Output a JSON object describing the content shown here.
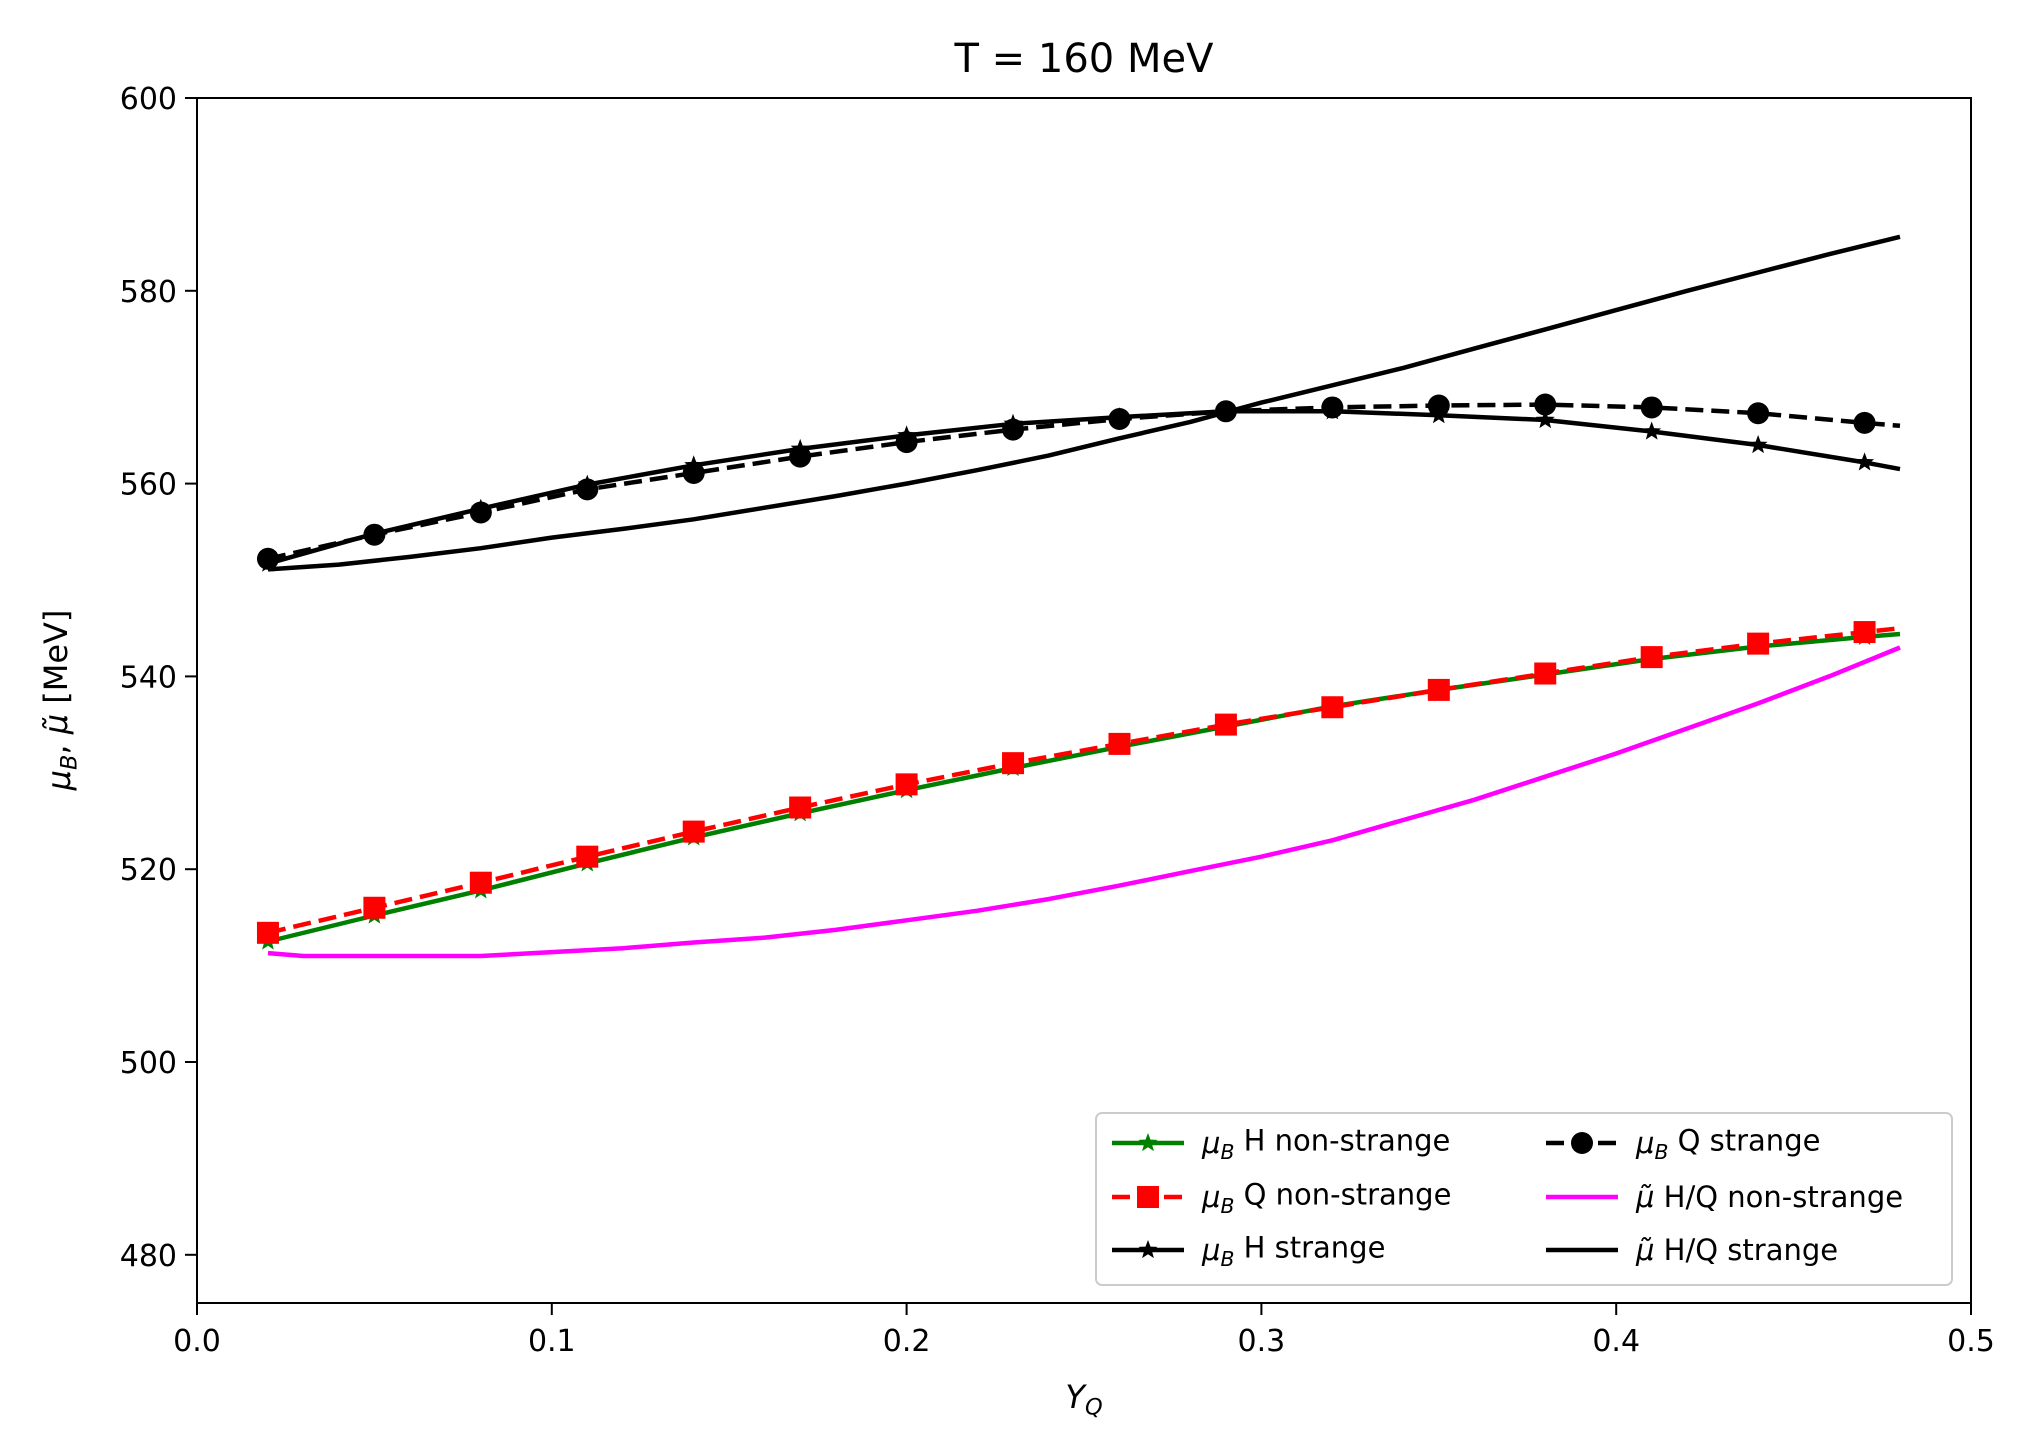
{
  "chart_data": {
    "type": "line",
    "title": "T = 160 MeV",
    "xlabel": "Y_Q",
    "ylabel": "μ_B, μ̃ [MeV]",
    "xlim": [
      0.0,
      0.5
    ],
    "ylim": [
      475,
      600
    ],
    "xticks": [
      "0.0",
      "0.1",
      "0.2",
      "0.3",
      "0.4",
      "0.5"
    ],
    "yticks": [
      "480",
      "500",
      "520",
      "540",
      "560",
      "580",
      "600"
    ],
    "grid": false,
    "legend_position": "lower-right",
    "series": [
      {
        "name": "μ_B H non-strange",
        "color": "#008000",
        "style": "solid",
        "marker": "star",
        "x": [
          0.02,
          0.05,
          0.08,
          0.11,
          0.14,
          0.17,
          0.2,
          0.23,
          0.26,
          0.29,
          0.32,
          0.35,
          0.38,
          0.41,
          0.44,
          0.47,
          0.48
        ],
        "y": [
          512.5,
          515.2,
          517.8,
          520.6,
          523.3,
          525.8,
          528.2,
          530.5,
          532.7,
          534.8,
          536.9,
          538.6,
          540.2,
          541.8,
          543.1,
          544.1,
          544.4
        ]
      },
      {
        "name": "μ_B Q non-strange",
        "color": "#ff0000",
        "style": "dashed",
        "marker": "square",
        "x": [
          0.02,
          0.05,
          0.08,
          0.11,
          0.14,
          0.17,
          0.2,
          0.23,
          0.26,
          0.29,
          0.32,
          0.35,
          0.38,
          0.41,
          0.44,
          0.47,
          0.48
        ],
        "y": [
          513.4,
          516.0,
          518.6,
          521.3,
          523.9,
          526.4,
          528.8,
          531.0,
          533.0,
          535.0,
          536.8,
          538.6,
          540.3,
          542.0,
          543.4,
          544.6,
          545.0
        ]
      },
      {
        "name": "μ_B H strange",
        "color": "#000000",
        "style": "solid",
        "marker": "star",
        "x": [
          0.02,
          0.05,
          0.08,
          0.11,
          0.14,
          0.17,
          0.2,
          0.23,
          0.26,
          0.29,
          0.32,
          0.35,
          0.38,
          0.41,
          0.44,
          0.47,
          0.48
        ],
        "y": [
          551.7,
          554.8,
          557.4,
          559.9,
          561.9,
          563.6,
          565.0,
          566.2,
          566.9,
          567.5,
          567.5,
          567.1,
          566.6,
          565.4,
          564.0,
          562.2,
          561.5
        ]
      },
      {
        "name": "μ_B Q strange",
        "color": "#000000",
        "style": "dashed",
        "marker": "circle",
        "x": [
          0.02,
          0.05,
          0.08,
          0.11,
          0.14,
          0.17,
          0.2,
          0.23,
          0.26,
          0.29,
          0.32,
          0.35,
          0.38,
          0.41,
          0.44,
          0.47,
          0.48
        ],
        "y": [
          552.2,
          554.7,
          557.0,
          559.4,
          561.1,
          562.8,
          564.3,
          565.6,
          566.7,
          567.5,
          567.9,
          568.1,
          568.2,
          567.9,
          567.3,
          566.3,
          566.0
        ]
      },
      {
        "name": "μ̃ H/Q non-strange",
        "color": "#ff00ff",
        "style": "solid",
        "marker": "none",
        "x": [
          0.02,
          0.03,
          0.05,
          0.08,
          0.1,
          0.12,
          0.14,
          0.16,
          0.18,
          0.2,
          0.22,
          0.24,
          0.26,
          0.28,
          0.3,
          0.32,
          0.34,
          0.36,
          0.38,
          0.4,
          0.42,
          0.44,
          0.46,
          0.48
        ],
        "y": [
          511.3,
          511.0,
          511.0,
          511.0,
          511.4,
          511.8,
          512.4,
          512.9,
          513.7,
          514.7,
          515.7,
          516.9,
          518.3,
          519.8,
          521.3,
          523.0,
          525.1,
          527.2,
          529.6,
          532.0,
          534.6,
          537.2,
          540.0,
          543.0
        ]
      },
      {
        "name": "μ̃ H/Q strange",
        "color": "#000000",
        "style": "solid",
        "marker": "none",
        "x": [
          0.02,
          0.04,
          0.06,
          0.08,
          0.1,
          0.12,
          0.14,
          0.16,
          0.18,
          0.2,
          0.22,
          0.24,
          0.26,
          0.28,
          0.3,
          0.32,
          0.34,
          0.36,
          0.38,
          0.4,
          0.42,
          0.44,
          0.46,
          0.48
        ],
        "y": [
          551.1,
          551.6,
          552.4,
          553.3,
          554.4,
          555.3,
          556.3,
          557.5,
          558.7,
          560.0,
          561.4,
          562.9,
          564.7,
          566.4,
          568.4,
          570.2,
          572.0,
          574.0,
          576.0,
          578.0,
          580.0,
          581.9,
          583.8,
          585.6
        ]
      }
    ]
  }
}
